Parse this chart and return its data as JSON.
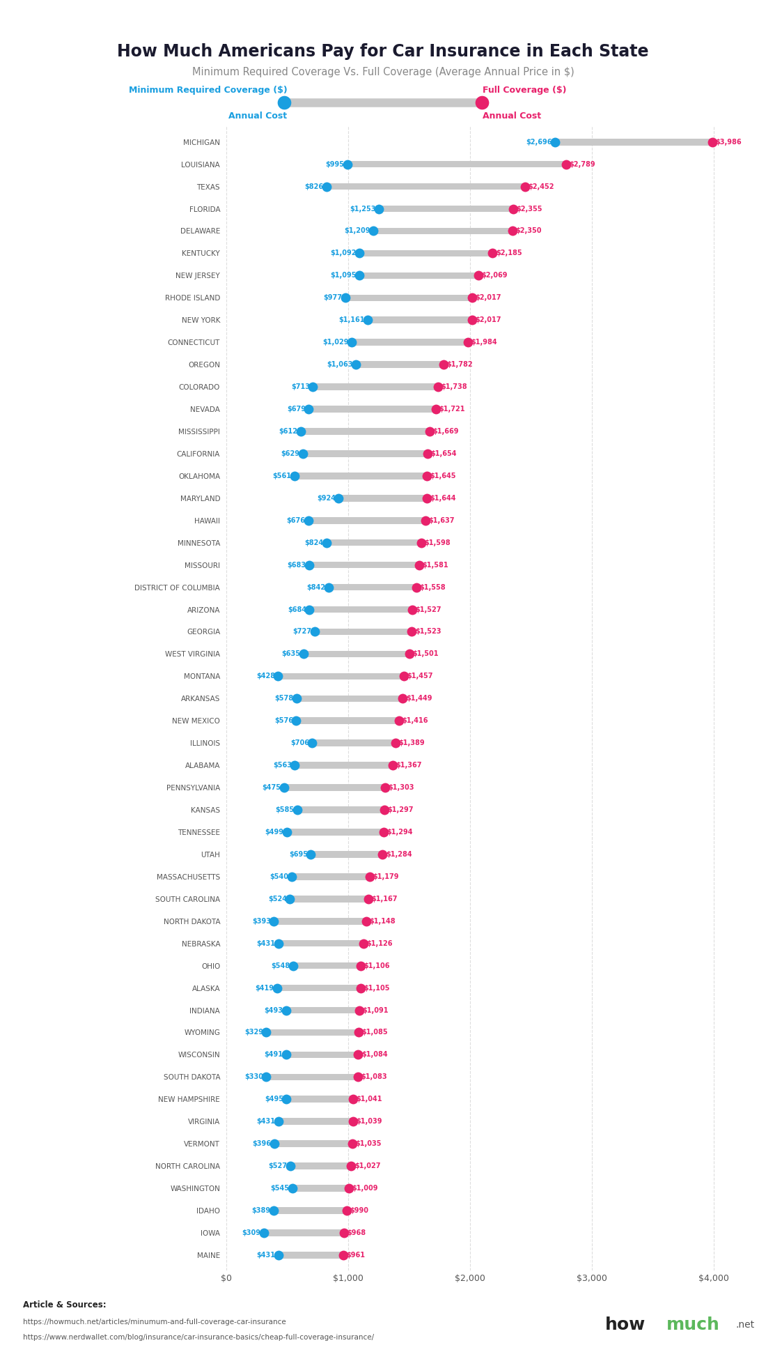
{
  "title": "How Much Americans Pay for Car Insurance in Each State",
  "subtitle": "Minimum Required Coverage Vs. Full Coverage (Average Annual Price in $)",
  "states": [
    "MICHIGAN",
    "LOUISIANA",
    "TEXAS",
    "FLORIDA",
    "DELAWARE",
    "KENTUCKY",
    "NEW JERSEY",
    "RHODE ISLAND",
    "NEW YORK",
    "CONNECTICUT",
    "OREGON",
    "COLORADO",
    "NEVADA",
    "MISSISSIPPI",
    "CALIFORNIA",
    "OKLAHOMA",
    "MARYLAND",
    "HAWAII",
    "MINNESOTA",
    "MISSOURI",
    "DISTRICT OF COLUMBIA",
    "ARIZONA",
    "GEORGIA",
    "WEST VIRGINIA",
    "MONTANA",
    "ARKANSAS",
    "NEW MEXICO",
    "ILLINOIS",
    "ALABAMA",
    "PENNSYLVANIA",
    "KANSAS",
    "TENNESSEE",
    "UTAH",
    "MASSACHUSETTS",
    "SOUTH CAROLINA",
    "NORTH DAKOTA",
    "NEBRASKA",
    "OHIO",
    "ALASKA",
    "INDIANA",
    "WYOMING",
    "WISCONSIN",
    "SOUTH DAKOTA",
    "NEW HAMPSHIRE",
    "VIRGINIA",
    "VERMONT",
    "NORTH CAROLINA",
    "WASHINGTON",
    "IDAHO",
    "IOWA",
    "MAINE"
  ],
  "min_coverage": [
    2696,
    995,
    826,
    1253,
    1209,
    1092,
    1095,
    977,
    1161,
    1029,
    1063,
    713,
    679,
    612,
    629,
    561,
    924,
    676,
    824,
    683,
    842,
    684,
    727,
    635,
    428,
    578,
    576,
    706,
    563,
    475,
    585,
    499,
    695,
    540,
    524,
    393,
    431,
    548,
    419,
    493,
    329,
    491,
    330,
    495,
    431,
    396,
    527,
    545,
    389,
    309,
    431
  ],
  "full_coverage": [
    3986,
    2789,
    2452,
    2355,
    2350,
    2185,
    2069,
    2017,
    2017,
    1984,
    1782,
    1738,
    1721,
    1669,
    1654,
    1645,
    1644,
    1637,
    1598,
    1581,
    1558,
    1527,
    1523,
    1501,
    1457,
    1449,
    1416,
    1389,
    1367,
    1303,
    1297,
    1294,
    1284,
    1179,
    1167,
    1148,
    1126,
    1106,
    1105,
    1091,
    1085,
    1084,
    1083,
    1041,
    1039,
    1035,
    1027,
    1009,
    990,
    968,
    961
  ],
  "min_color": "#1a9fe0",
  "full_color": "#e8216b",
  "bar_color": "#c8c8c8",
  "background_color": "#ffffff",
  "label_color_min": "#1a9fe0",
  "label_color_full": "#e8216b",
  "state_color": "#555555",
  "title_color": "#1a1a2e",
  "subtitle_color": "#888888",
  "source_text1": "Article & Sources:",
  "source_text2": "https://howmuch.net/articles/minumum-and-full-coverage-car-insurance",
  "source_text3": "https://www.nerdwallet.com/blog/insurance/car-insurance-basics/cheap-full-coverage-insurance/",
  "legend_min_label1": "Minimum Required Coverage ($)",
  "legend_min_label2": "Annual Cost",
  "legend_full_label1": "Full Coverage ($)",
  "legend_full_label2": "Annual Cost",
  "xlim": [
    0,
    4300
  ],
  "xticks": [
    0,
    1000,
    2000,
    3000,
    4000
  ],
  "xticklabels": [
    "$0",
    "$1,000",
    "$2,000",
    "$3,000",
    "$4,000"
  ]
}
